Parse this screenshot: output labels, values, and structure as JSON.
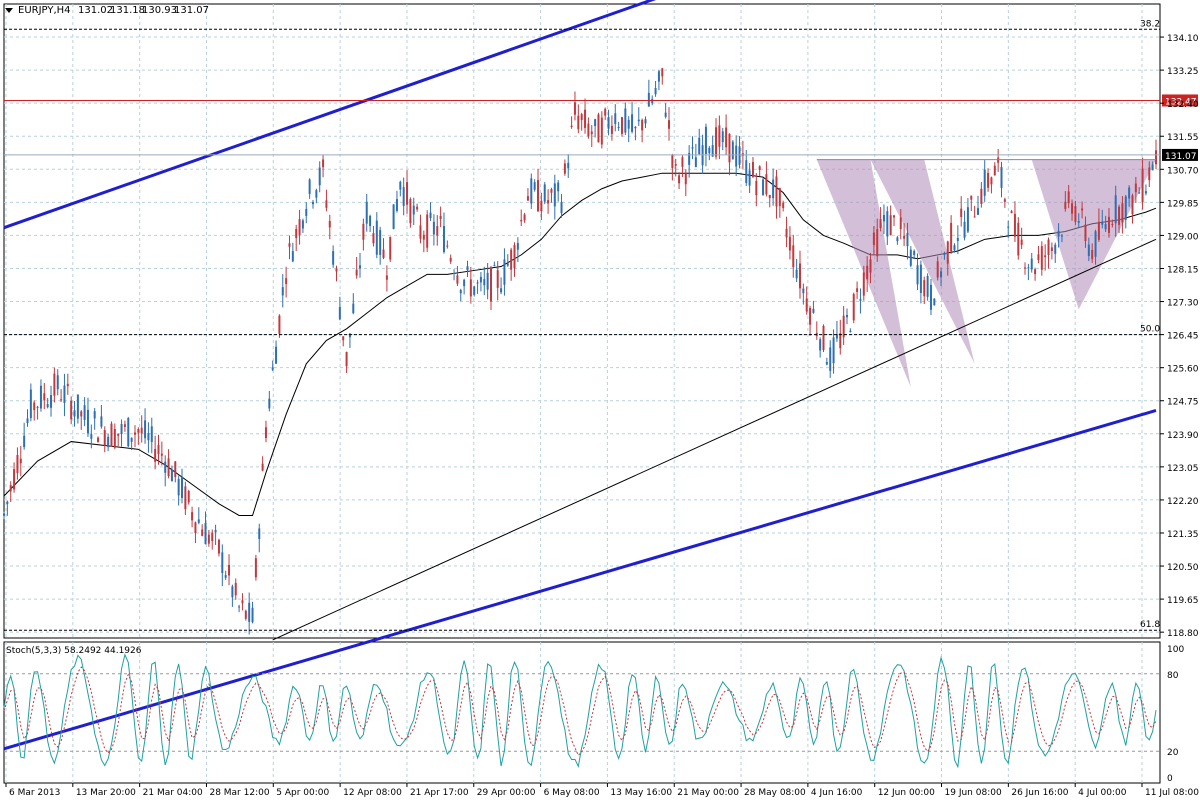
{
  "header": {
    "symbol": "EURJPY,H4",
    "open": "131.02",
    "high": "131.18",
    "low": "130.93",
    "close": "131.07"
  },
  "stoch_label": "Stoch(5,3,3) 58.2492 44.1926",
  "colors": {
    "bull": "#2e6fb3",
    "bear": "#c0393f",
    "channel": "#1f1fd0",
    "resistance": "#cc2222",
    "pattern_fill": "#b08ab8",
    "price_badge": "#000000",
    "stoch_main": "#20a0a0",
    "stoch_signal": "#c0393f"
  },
  "chart_data": [
    {
      "type": "candlestick",
      "title": "EURJPY,H4",
      "y_ticks": [
        "134.10",
        "133.25",
        "132.40",
        "131.55",
        "130.70",
        "129.85",
        "129.00",
        "128.15",
        "127.30",
        "126.45",
        "125.60",
        "124.75",
        "123.90",
        "123.05",
        "122.20",
        "121.35",
        "120.50",
        "119.65",
        "118.80"
      ],
      "ylim": [
        118.65,
        134.95
      ],
      "x_labels": [
        "6 Mar 2013",
        "13 Mar 20:00",
        "21 Mar 04:00",
        "28 Mar 12:00",
        "5 Apr 00:00",
        "12 Apr 08:00",
        "21 Apr 17:00",
        "29 Apr 00:00",
        "6 May 08:00",
        "13 May 16:00",
        "21 May 00:00",
        "28 May 08:00",
        "4 Jun 16:00",
        "12 Jun 00:00",
        "19 Jun 08:00",
        "26 Jun 16:00",
        "4 Jul 00:00",
        "11 Jul 08:00"
      ],
      "close_path": [
        [
          0,
          121.8
        ],
        [
          8,
          124.6
        ],
        [
          16,
          125.1
        ],
        [
          24,
          124.3
        ],
        [
          32,
          123.9
        ],
        [
          40,
          124.0
        ],
        [
          48,
          123.3
        ],
        [
          56,
          121.9
        ],
        [
          64,
          120.9
        ],
        [
          70,
          119.4
        ],
        [
          74,
          119.1
        ],
        [
          78,
          124.1
        ],
        [
          84,
          128.2
        ],
        [
          90,
          129.9
        ],
        [
          95,
          130.6
        ],
        [
          98,
          128.6
        ],
        [
          102,
          125.8
        ],
        [
          108,
          129.6
        ],
        [
          114,
          128.3
        ],
        [
          118,
          130.4
        ],
        [
          124,
          129.1
        ],
        [
          130,
          129.2
        ],
        [
          136,
          127.9
        ],
        [
          142,
          127.6
        ],
        [
          148,
          127.9
        ],
        [
          152,
          128.6
        ],
        [
          156,
          130.1
        ],
        [
          162,
          129.9
        ],
        [
          166,
          130.0
        ],
        [
          170,
          132.1
        ],
        [
          176,
          131.6
        ],
        [
          182,
          132.1
        ],
        [
          188,
          131.6
        ],
        [
          196,
          133.0
        ],
        [
          200,
          130.5
        ],
        [
          206,
          131.0
        ],
        [
          210,
          131.5
        ],
        [
          216,
          131.3
        ],
        [
          222,
          130.6
        ],
        [
          230,
          130.1
        ],
        [
          238,
          127.6
        ],
        [
          246,
          125.8
        ],
        [
          252,
          126.9
        ],
        [
          258,
          128.4
        ],
        [
          262,
          129.4
        ],
        [
          266,
          129.2
        ],
        [
          270,
          128.5
        ],
        [
          276,
          127.4
        ],
        [
          282,
          128.9
        ],
        [
          288,
          129.6
        ],
        [
          292,
          130.3
        ],
        [
          296,
          130.7
        ],
        [
          300,
          129.3
        ],
        [
          306,
          128.2
        ],
        [
          312,
          128.7
        ],
        [
          318,
          129.9
        ],
        [
          324,
          128.6
        ],
        [
          330,
          129.6
        ],
        [
          336,
          129.9
        ],
        [
          340,
          130.4
        ],
        [
          343,
          131.07
        ]
      ],
      "sma_path": [
        [
          0,
          122.3
        ],
        [
          10,
          123.2
        ],
        [
          20,
          123.7
        ],
        [
          30,
          123.6
        ],
        [
          40,
          123.5
        ],
        [
          48,
          123.1
        ],
        [
          56,
          122.6
        ],
        [
          64,
          122.1
        ],
        [
          70,
          121.8
        ],
        [
          74,
          121.8
        ],
        [
          78,
          122.9
        ],
        [
          84,
          124.4
        ],
        [
          90,
          125.7
        ],
        [
          96,
          126.3
        ],
        [
          102,
          126.6
        ],
        [
          108,
          127.0
        ],
        [
          114,
          127.4
        ],
        [
          120,
          127.7
        ],
        [
          126,
          128.0
        ],
        [
          132,
          128.0
        ],
        [
          140,
          128.1
        ],
        [
          148,
          128.2
        ],
        [
          154,
          128.5
        ],
        [
          160,
          128.9
        ],
        [
          166,
          129.5
        ],
        [
          172,
          129.9
        ],
        [
          178,
          130.2
        ],
        [
          184,
          130.4
        ],
        [
          190,
          130.5
        ],
        [
          196,
          130.6
        ],
        [
          202,
          130.6
        ],
        [
          210,
          130.6
        ],
        [
          218,
          130.6
        ],
        [
          226,
          130.5
        ],
        [
          232,
          130.1
        ],
        [
          238,
          129.4
        ],
        [
          244,
          129.0
        ],
        [
          250,
          128.8
        ],
        [
          258,
          128.5
        ],
        [
          266,
          128.5
        ],
        [
          272,
          128.4
        ],
        [
          278,
          128.5
        ],
        [
          284,
          128.6
        ],
        [
          292,
          128.9
        ],
        [
          300,
          129.0
        ],
        [
          308,
          129.0
        ],
        [
          316,
          129.1
        ],
        [
          324,
          129.3
        ],
        [
          332,
          129.4
        ],
        [
          340,
          129.6
        ],
        [
          343,
          129.7
        ]
      ],
      "channel_upper": [
        [
          0,
          129.2
        ],
        [
          224,
          136.0
        ]
      ],
      "channel_lower": [
        [
          0,
          115.8
        ],
        [
          343,
          124.5
        ]
      ],
      "trendline_thin": [
        [
          80,
          118.6
        ],
        [
          343,
          128.9
        ]
      ],
      "fib_levels": [
        {
          "label": "38.2",
          "value": 134.3
        },
        {
          "label": "50.0",
          "value": 126.45
        },
        {
          "label": "61.8",
          "value": 118.85
        }
      ],
      "resistance_level": {
        "label": "132.47",
        "value": 132.47
      },
      "current_price": {
        "label": "131.07",
        "value": 131.07
      },
      "neckline": [
        [
          242,
          130.95
        ],
        [
          343,
          130.95
        ]
      ],
      "head_shoulders": [
        [
          [
            242,
            130.95
          ],
          [
            258,
            130.95
          ],
          [
            270,
            125.1
          ]
        ],
        [
          [
            258,
            130.95
          ],
          [
            274,
            130.95
          ],
          [
            289,
            125.7
          ]
        ],
        [
          [
            306,
            130.95
          ],
          [
            343,
            130.95
          ],
          [
            320,
            127.1
          ]
        ]
      ]
    },
    {
      "type": "line",
      "title": "Stoch(5,3,3)",
      "y_ticks": [
        "100",
        "80",
        "20",
        "0"
      ],
      "ylim": [
        0,
        100
      ],
      "series": [
        {
          "name": "main",
          "values": [
            58.2492
          ]
        },
        {
          "name": "signal",
          "values": [
            44.1926
          ]
        }
      ]
    }
  ]
}
